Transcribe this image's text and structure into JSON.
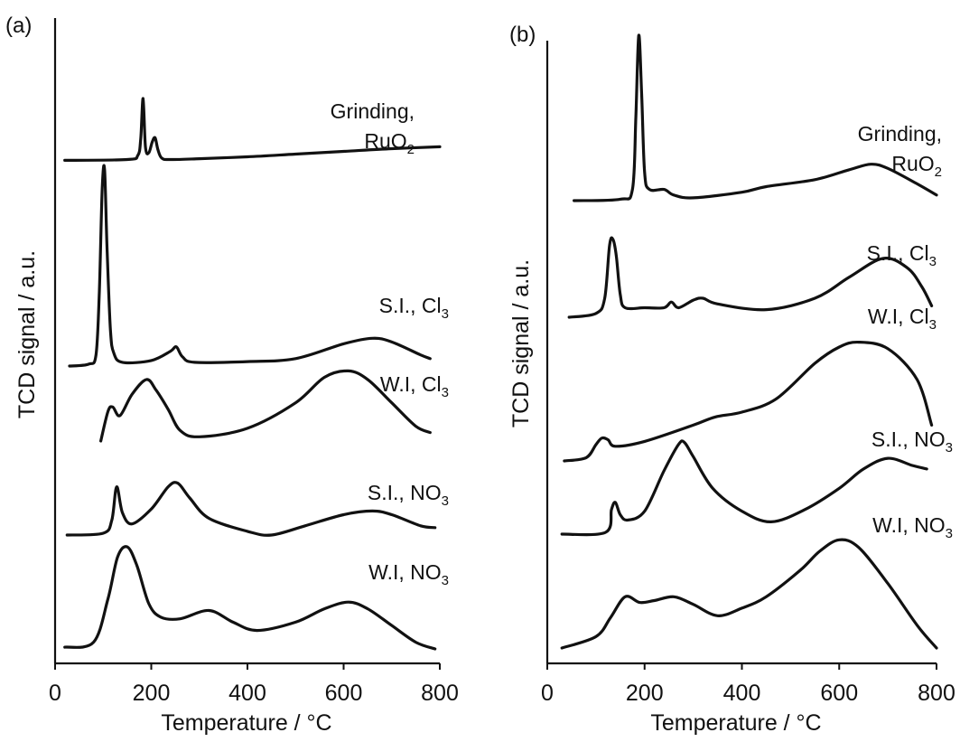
{
  "chart_data": [
    {
      "panel_label": "(a)",
      "type": "line",
      "xlabel": "Temperature / °C",
      "ylabel": "TCD signal / a.u.",
      "xlim": [
        0,
        800
      ],
      "xticks": [
        "0",
        "200",
        "400",
        "600",
        "800"
      ],
      "yaxis": "arbitrary units, curves vertically offset, no y tick labels",
      "series": [
        {
          "name": "Grinding, RuO2",
          "label_lines": [
            {
              "text": "Grinding,"
            },
            {
              "text": "RuO",
              "sub": "2"
            }
          ],
          "x": [
            20,
            150,
            172,
            178,
            183,
            188,
            195,
            202,
            208,
            214,
            222,
            240,
            300,
            400,
            500,
            600,
            700,
            800
          ],
          "y": [
            0.12,
            0.15,
            0.3,
            0.9,
            2.4,
            0.6,
            0.4,
            0.8,
            0.95,
            0.5,
            0.2,
            0.15,
            0.18,
            0.25,
            0.35,
            0.45,
            0.55,
            0.62
          ]
        },
        {
          "name": "S.I., Cl3",
          "label_lines": [
            {
              "text": "S.I.,  Cl",
              "sub": "3"
            }
          ],
          "x": [
            30,
            70,
            85,
            92,
            98,
            103,
            108,
            115,
            122,
            140,
            200,
            240,
            252,
            265,
            290,
            400,
            500,
            600,
            660,
            700,
            760,
            780
          ],
          "y": [
            0.0,
            0.05,
            0.3,
            2.0,
            4.8,
            5.3,
            3.2,
            1.0,
            0.35,
            0.1,
            0.15,
            0.4,
            0.52,
            0.25,
            0.1,
            0.12,
            0.2,
            0.6,
            0.75,
            0.65,
            0.3,
            0.2
          ]
        },
        {
          "name": "W.I, Cl3",
          "label_lines": [
            {
              "text": "W.I, Cl",
              "sub": "3"
            }
          ],
          "x": [
            95,
            110,
            120,
            135,
            160,
            190,
            210,
            235,
            260,
            300,
            400,
            500,
            560,
            610,
            650,
            700,
            750,
            780
          ],
          "y": [
            0.0,
            0.7,
            0.8,
            0.6,
            1.1,
            1.45,
            1.2,
            0.75,
            0.25,
            0.1,
            0.3,
            0.9,
            1.5,
            1.65,
            1.45,
            0.9,
            0.35,
            0.2
          ]
        },
        {
          "name": "S.I., NO3",
          "label_lines": [
            {
              "text": "S.I., NO",
              "sub": "3"
            }
          ],
          "x": [
            25,
            100,
            118,
            128,
            140,
            160,
            200,
            235,
            255,
            280,
            320,
            400,
            450,
            520,
            600,
            660,
            700,
            760,
            790
          ],
          "y": [
            0.0,
            0.05,
            0.4,
            1.3,
            0.6,
            0.3,
            0.7,
            1.3,
            1.4,
            1.0,
            0.45,
            0.1,
            0.0,
            0.25,
            0.55,
            0.65,
            0.55,
            0.25,
            0.2
          ]
        },
        {
          "name": "W.I, NO3",
          "label_lines": [
            {
              "text": "W.I, NO",
              "sub": "3"
            }
          ],
          "x": [
            20,
            80,
            110,
            130,
            150,
            170,
            195,
            220,
            260,
            320,
            370,
            420,
            500,
            560,
            610,
            650,
            700,
            750,
            790
          ],
          "y": [
            0.05,
            0.2,
            1.5,
            2.75,
            3.05,
            2.5,
            1.35,
            0.95,
            0.9,
            1.15,
            0.8,
            0.55,
            0.8,
            1.2,
            1.4,
            1.2,
            0.7,
            0.2,
            0.0
          ]
        }
      ]
    },
    {
      "panel_label": "(b)",
      "type": "line",
      "xlabel": "Temperature / °C",
      "ylabel": "TCD signal / a.u.",
      "xlim": [
        0,
        800
      ],
      "xticks": [
        "0",
        "200",
        "400",
        "600",
        "800"
      ],
      "yaxis": "arbitrary units, curves vertically offset, no y tick labels",
      "series": [
        {
          "name": "Grinding, RuO2",
          "label_lines": [
            {
              "text": "Grinding,"
            },
            {
              "text": "RuO",
              "sub": "2"
            }
          ],
          "x": [
            55,
            150,
            175,
            182,
            188,
            194,
            200,
            210,
            240,
            260,
            300,
            400,
            450,
            550,
            620,
            665,
            700,
            760,
            800
          ],
          "y": [
            0.0,
            0.05,
            0.4,
            3.0,
            5.9,
            3.8,
            1.0,
            0.4,
            0.4,
            0.2,
            0.1,
            0.3,
            0.5,
            0.75,
            1.1,
            1.3,
            1.15,
            0.6,
            0.2
          ]
        },
        {
          "name": "S.I., Cl3",
          "label_lines": [
            {
              "text": "S.I., Cl",
              "sub": "3"
            }
          ],
          "x": [
            45,
            100,
            118,
            128,
            135,
            142,
            150,
            160,
            200,
            240,
            255,
            270,
            300,
            320,
            350,
            450,
            550,
            620,
            690,
            740,
            770,
            790
          ],
          "y": [
            0.0,
            0.1,
            0.5,
            1.9,
            2.05,
            1.6,
            0.6,
            0.25,
            0.25,
            0.25,
            0.4,
            0.25,
            0.45,
            0.5,
            0.35,
            0.2,
            0.5,
            1.05,
            1.55,
            1.3,
            0.8,
            0.3
          ]
        },
        {
          "name": "W.I, Cl3",
          "label_lines": [
            {
              "text": "W.I, Cl",
              "sub": "3"
            }
          ],
          "x": [
            35,
            80,
            100,
            112,
            125,
            140,
            200,
            300,
            345,
            400,
            470,
            550,
            600,
            640,
            700,
            760,
            790
          ],
          "y": [
            0.0,
            0.1,
            0.5,
            0.7,
            0.65,
            0.45,
            0.6,
            1.1,
            1.35,
            1.5,
            1.9,
            3.0,
            3.5,
            3.65,
            3.45,
            2.5,
            1.1
          ]
        },
        {
          "name": "S.I., NO3",
          "label_lines": [
            {
              "text": "S.I., NO",
              "sub": "3"
            }
          ],
          "x": [
            30,
            120,
            132,
            140,
            150,
            165,
            200,
            240,
            270,
            282,
            300,
            340,
            400,
            460,
            530,
            600,
            650,
            700,
            750,
            780
          ],
          "y": [
            0.0,
            0.05,
            0.7,
            0.9,
            0.55,
            0.4,
            0.65,
            1.8,
            2.55,
            2.6,
            2.2,
            1.3,
            0.65,
            0.35,
            0.7,
            1.3,
            1.85,
            2.15,
            1.95,
            1.85
          ]
        },
        {
          "name": "W.I, NO3",
          "label_lines": [
            {
              "text": "W.I, NO",
              "sub": "3"
            }
          ],
          "x": [
            30,
            100,
            130,
            160,
            190,
            220,
            260,
            300,
            350,
            400,
            450,
            520,
            560,
            600,
            640,
            700,
            760,
            800
          ],
          "y": [
            0.0,
            0.3,
            0.8,
            1.35,
            1.2,
            1.25,
            1.35,
            1.15,
            0.85,
            1.05,
            1.35,
            2.05,
            2.55,
            2.85,
            2.65,
            1.7,
            0.6,
            0.0
          ]
        }
      ]
    }
  ]
}
